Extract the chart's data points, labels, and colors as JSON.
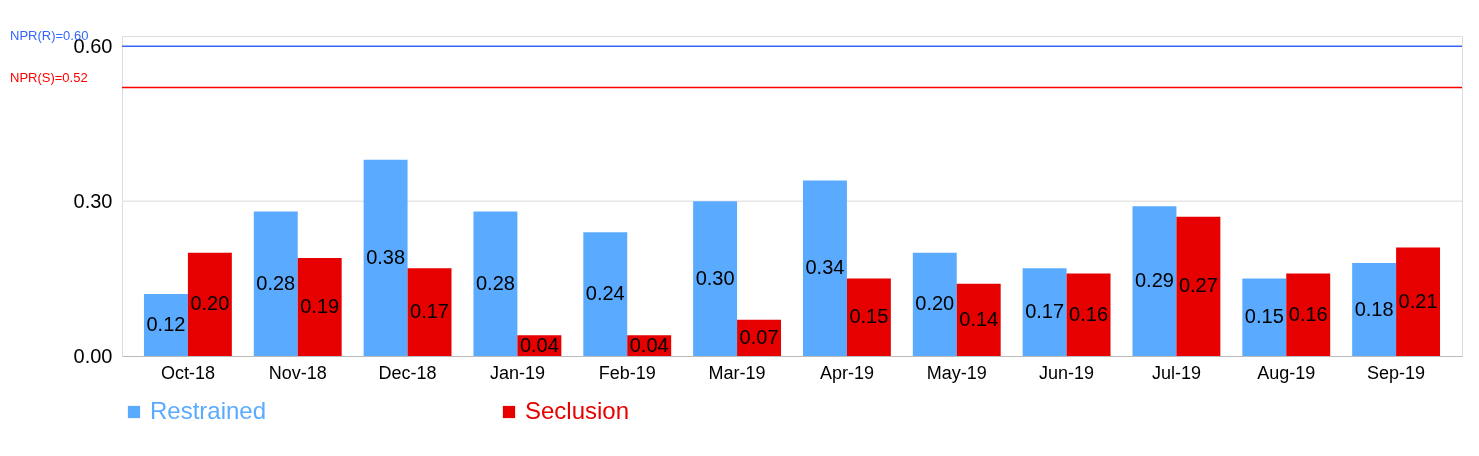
{
  "chart_data": {
    "type": "bar",
    "categories": [
      "Oct-18",
      "Nov-18",
      "Dec-18",
      "Jan-19",
      "Feb-19",
      "Mar-19",
      "Apr-19",
      "May-19",
      "Jun-19",
      "Jul-19",
      "Aug-19",
      "Sep-19"
    ],
    "series": [
      {
        "name": "Restrained",
        "color": "#5aabff",
        "values": [
          0.12,
          0.28,
          0.38,
          0.28,
          0.24,
          0.3,
          0.34,
          0.2,
          0.17,
          0.29,
          0.15,
          0.18
        ],
        "value_labels": [
          "0.12",
          "0.28",
          "0.38",
          "0.28",
          "0.24",
          "0.30",
          "0.34",
          "0.20",
          "0.17",
          "0.29",
          "0.15",
          "0.18"
        ]
      },
      {
        "name": "Seclusion",
        "color": "#e60000",
        "values": [
          0.2,
          0.19,
          0.17,
          0.04,
          0.04,
          0.07,
          0.15,
          0.14,
          0.16,
          0.27,
          0.16,
          0.21
        ],
        "value_labels": [
          "0.20",
          "0.19",
          "0.17",
          "0.04",
          "0.04",
          "0.07",
          "0.15",
          "0.14",
          "0.16",
          "0.27",
          "0.16",
          "0.21"
        ]
      }
    ],
    "ylim": [
      0,
      0.62
    ],
    "yticks": [
      {
        "value": 0,
        "label": "0.00"
      },
      {
        "value": 0.3,
        "label": "0.30"
      },
      {
        "value": 0.6,
        "label": "0.60"
      }
    ],
    "ref_lines": [
      {
        "axis": "y",
        "value": 0.6,
        "label": "NPR(R)=0.60",
        "color": "#3366ff"
      },
      {
        "axis": "y",
        "value": 0.52,
        "label": "NPR(S)=0.52",
        "color": "#ff0000"
      },
      {
        "axis": "y",
        "value": 0.3,
        "color": "#e6e6e6"
      }
    ],
    "legend": "bottom"
  }
}
